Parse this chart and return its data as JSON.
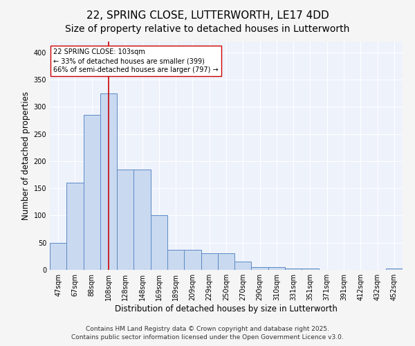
{
  "title1": "22, SPRING CLOSE, LUTTERWORTH, LE17 4DD",
  "title2": "Size of property relative to detached houses in Lutterworth",
  "xlabel": "Distribution of detached houses by size in Lutterworth",
  "ylabel": "Number of detached properties",
  "categories": [
    "47sqm",
    "67sqm",
    "88sqm",
    "108sqm",
    "128sqm",
    "148sqm",
    "169sqm",
    "189sqm",
    "209sqm",
    "229sqm",
    "250sqm",
    "270sqm",
    "290sqm",
    "310sqm",
    "331sqm",
    "351sqm",
    "371sqm",
    "391sqm",
    "412sqm",
    "432sqm",
    "452sqm"
  ],
  "values": [
    50,
    160,
    285,
    325,
    185,
    185,
    100,
    37,
    37,
    30,
    30,
    15,
    5,
    5,
    3,
    3,
    0,
    0,
    0,
    0,
    3
  ],
  "bar_color": "#c9d9f0",
  "bar_edge_color": "#5b8ac5",
  "vline_x": 3,
  "vline_color": "#cc0000",
  "annotation_title": "22 SPRING CLOSE: 103sqm",
  "annotation_line1": "← 33% of detached houses are smaller (399)",
  "annotation_line2": "66% of semi-detached houses are larger (797) →",
  "annotation_box_color": "#ffffff",
  "annotation_box_edge": "#cc0000",
  "footer1": "Contains HM Land Registry data © Crown copyright and database right 2025.",
  "footer2": "Contains public sector information licensed under the Open Government Licence v3.0.",
  "ylim": [
    0,
    420
  ],
  "yticks": [
    0,
    50,
    100,
    150,
    200,
    250,
    300,
    350,
    400
  ],
  "background_color": "#eef2fb",
  "grid_color": "#ffffff",
  "title1_fontsize": 11,
  "title2_fontsize": 10,
  "xlabel_fontsize": 8.5,
  "ylabel_fontsize": 8.5,
  "tick_fontsize": 7,
  "footer_fontsize": 6.5,
  "fig_width": 6.0,
  "fig_height": 5.0,
  "fig_dpi": 100
}
